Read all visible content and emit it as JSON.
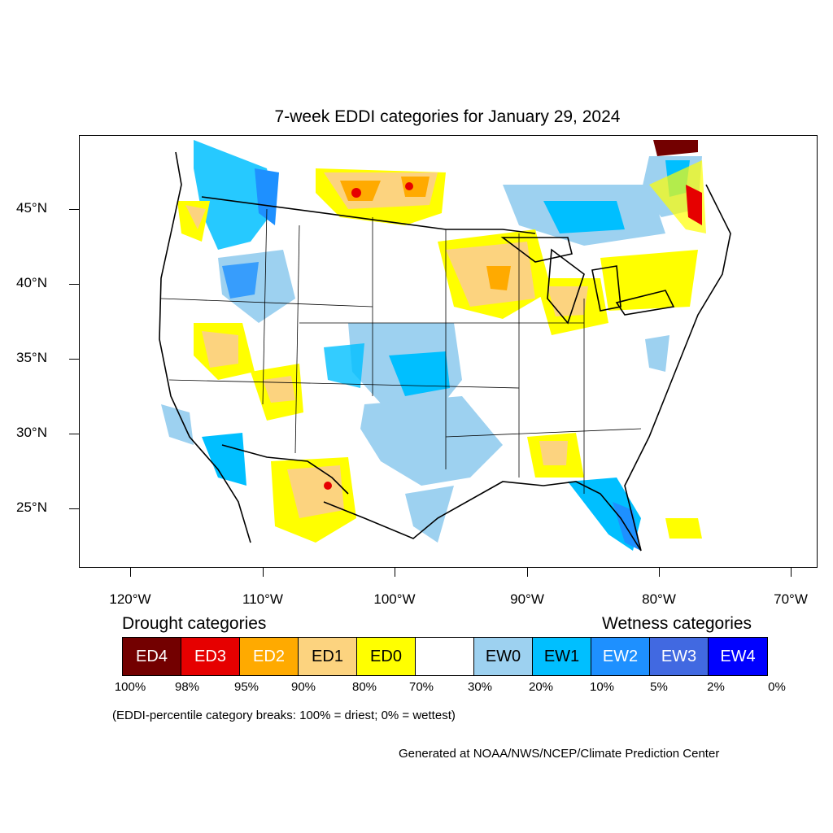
{
  "title": "7-week EDDI categories for January 29, 2024",
  "lat_labels": [
    "45°N",
    "40°N",
    "35°N",
    "30°N",
    "25°N"
  ],
  "lon_labels": [
    "120°W",
    "110°W",
    "100°W",
    "90°W",
    "80°W",
    "70°W"
  ],
  "drought_heading": "Drought categories",
  "wetness_heading": "Wetness categories",
  "categories": [
    {
      "label": "ED4",
      "color": "#730000",
      "text_color": "#ffffff"
    },
    {
      "label": "ED3",
      "color": "#e60000",
      "text_color": "#ffffff"
    },
    {
      "label": "ED2",
      "color": "#ffaa00",
      "text_color": "#ffffff"
    },
    {
      "label": "ED1",
      "color": "#fcd37f",
      "text_color": "#000000"
    },
    {
      "label": "ED0",
      "color": "#ffff00",
      "text_color": "#000000"
    },
    {
      "label": "",
      "color": "#ffffff",
      "text_color": "#000000"
    },
    {
      "label": "EW0",
      "color": "#9dd1f0",
      "text_color": "#000000"
    },
    {
      "label": "EW1",
      "color": "#00bfff",
      "text_color": "#000000"
    },
    {
      "label": "EW2",
      "color": "#1e90ff",
      "text_color": "#ffffff"
    },
    {
      "label": "EW3",
      "color": "#4169e1",
      "text_color": "#ffffff"
    },
    {
      "label": "EW4",
      "color": "#0000ff",
      "text_color": "#ffffff"
    }
  ],
  "percentiles": [
    "100%",
    "98%",
    "95%",
    "90%",
    "80%",
    "70%",
    "30%",
    "20%",
    "10%",
    "5%",
    "2%",
    "0%"
  ],
  "note": "(EDDI-percentile category breaks: 100% = driest; 0% = wettest)",
  "credit": "Generated at NOAA/NWS/NCEP/Climate Prediction Center"
}
